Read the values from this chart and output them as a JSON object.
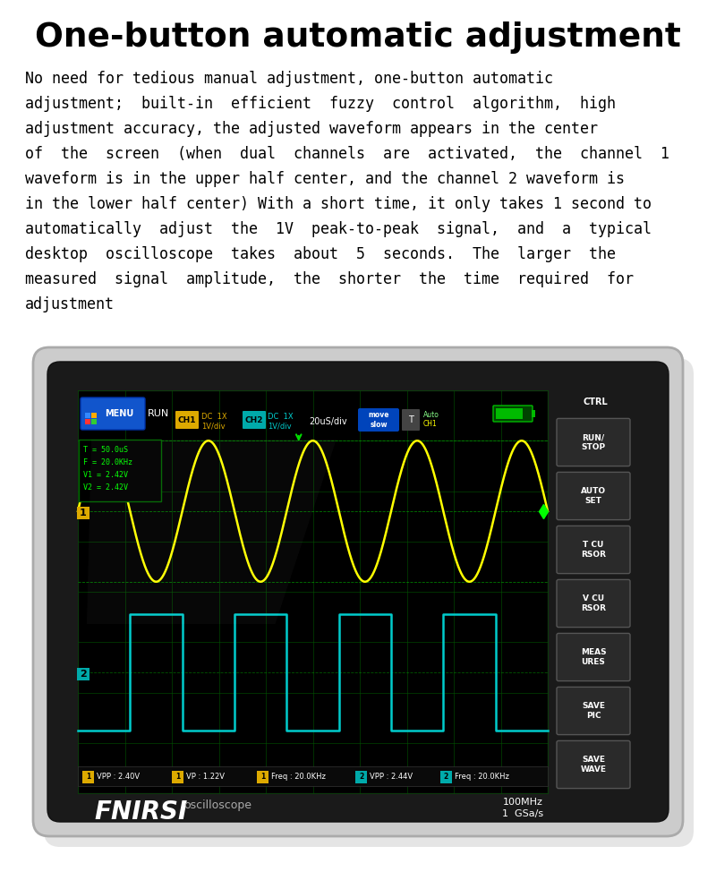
{
  "title": "One-button automatic adjustment",
  "body_text": "No need for tedious manual adjustment, one-button automatic adjustment; built-in efficient fuzzy control algorithm, high adjustment accuracy, the adjusted waveform appears in the center of the screen (when dual channels are activated, the channel 1 waveform is in the upper half center, and the channel 2 waveform is in the lower half center) With a short time, it only takes 1 second to automatically adjust the 1V peak-to-peak signal, and a typical desktop oscilloscope takes about 5 seconds. The larger the measured signal amplitude, the shorter the time required for adjustment",
  "bg_color": "#ffffff",
  "title_color": "#000000",
  "body_color": "#000000",
  "ch1_color": "#ffff00",
  "ch2_color": "#00cccc",
  "grid_color": "#005500",
  "device_outer_color": "#cccccc",
  "device_inner_color": "#1a1a1a",
  "screen_color": "#000000",
  "btn_bg": "#2a2a2a",
  "btn_border": "#555555",
  "menu_color": "#1155cc",
  "ch1_badge": "#ddaa00",
  "ch2_badge": "#00aaaa",
  "info_text": "#00ff00",
  "meas_bar_bg": "#0a0a0a",
  "body_lines": [
    "No need for tedious manual adjustment, one-button automatic",
    "adjustment;  built-in  efficient  fuzzy  control  algorithm,  high",
    "adjustment accuracy, the adjusted waveform appears in the center",
    "of  the  screen  (when  dual  channels  are  activated,  the  channel  1",
    "waveform is in the upper half center, and the channel 2 waveform is",
    "in the lower half center) With a short time, it only takes 1 second to",
    "automatically  adjust  the  1V  peak-to-peak  signal,  and  a  typical",
    "desktop  oscilloscope  takes  about  5  seconds.  The  larger  the",
    "measured  signal  amplitude,  the  shorter  the  time  required  for",
    "adjustment"
  ],
  "buttons": [
    "RUN/\nSTOP",
    "AUTO\nSET",
    "T CU\nRSOR",
    "V CU\nRSOR",
    "MEAS\nURES",
    "SAVE\nPIC",
    "SAVE\nWAVE"
  ],
  "info_lines": [
    "T = 50.0uS",
    "F = 20.0KHz",
    "V1 = 2.42V",
    "V2 = 2.42V"
  ],
  "meas_items": [
    {
      "badge": "1",
      "bcolor": "#ddaa00",
      "text": "VPP : 2.40V"
    },
    {
      "badge": "1",
      "bcolor": "#ddaa00",
      "text": "VP : 1.22V"
    },
    {
      "badge": "1",
      "bcolor": "#ddaa00",
      "text": "Freq : 20.0KHz"
    },
    {
      "badge": "2",
      "bcolor": "#00aaaa",
      "text": "VPP : 2.44V"
    },
    {
      "badge": "2",
      "bcolor": "#00aaaa",
      "text": "Freq : 20.0KHz"
    }
  ]
}
